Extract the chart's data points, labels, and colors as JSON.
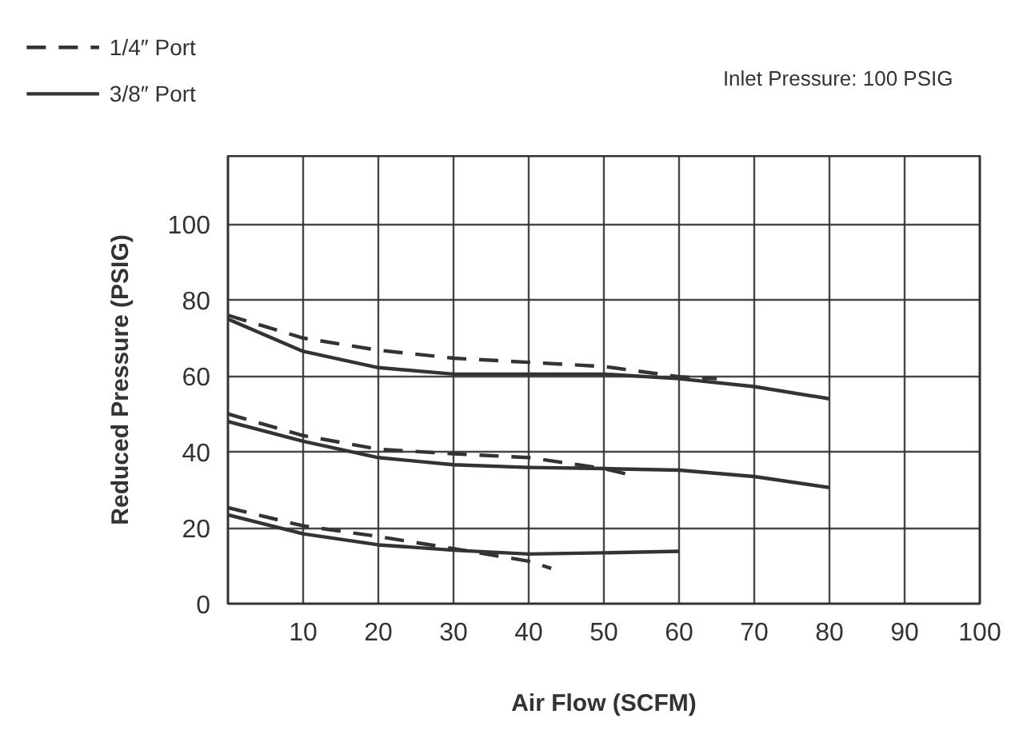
{
  "chart_data": {
    "type": "line",
    "xlabel": "Air Flow (SCFM)",
    "ylabel": "Reduced Pressure (PSIG)",
    "annotations": [
      "Inlet Pressure: 100 PSIG"
    ],
    "xlim": [
      0,
      100
    ],
    "ylim": [
      0,
      118
    ],
    "xticks": [
      {
        "value": 0,
        "label": null
      },
      10,
      20,
      30,
      40,
      50,
      60,
      70,
      80,
      90,
      100
    ],
    "yticks": [
      0,
      20,
      40,
      60,
      80,
      100
    ],
    "grid": true,
    "legend": "top left",
    "series": [
      {
        "name": "1/4″ Port",
        "color": "#333333",
        "line_style": "dashed",
        "x": [
          0,
          10,
          20,
          30,
          40,
          50,
          60,
          65
        ],
        "values": [
          76,
          70,
          66.8,
          64.7,
          63.6,
          62.5,
          59.8,
          59.3
        ]
      },
      {
        "name": "3/8″ Port",
        "color": "#333333",
        "line_style": "solid",
        "x": [
          0,
          10,
          20,
          30,
          40,
          50,
          60,
          70,
          80
        ],
        "values": [
          75,
          66.5,
          62.2,
          60.5,
          60.5,
          60.5,
          59.3,
          57.2,
          54
        ]
      },
      {
        "color": "#333333",
        "line_style": "dashed",
        "x": [
          0,
          10,
          20,
          30,
          40,
          50,
          53
        ],
        "values": [
          50,
          44.3,
          40.7,
          39.5,
          38.5,
          35.6,
          34.2
        ]
      },
      {
        "color": "#333333",
        "line_style": "solid",
        "x": [
          0,
          10,
          20,
          30,
          40,
          50,
          60,
          70,
          80
        ],
        "values": [
          48,
          42.8,
          38.5,
          36.6,
          35.9,
          35.6,
          35.2,
          33.5,
          30.6
        ]
      },
      {
        "color": "#333333",
        "line_style": "dashed",
        "x": [
          0,
          10,
          20,
          30,
          40,
          43
        ],
        "values": [
          25.3,
          20.5,
          17.7,
          14.5,
          11.2,
          9.3
        ]
      },
      {
        "color": "#333333",
        "line_style": "solid",
        "x": [
          0,
          10,
          20,
          30,
          40,
          50,
          60
        ],
        "values": [
          23.4,
          18.4,
          15.5,
          14.1,
          13.1,
          13.4,
          13.8
        ]
      }
    ]
  }
}
